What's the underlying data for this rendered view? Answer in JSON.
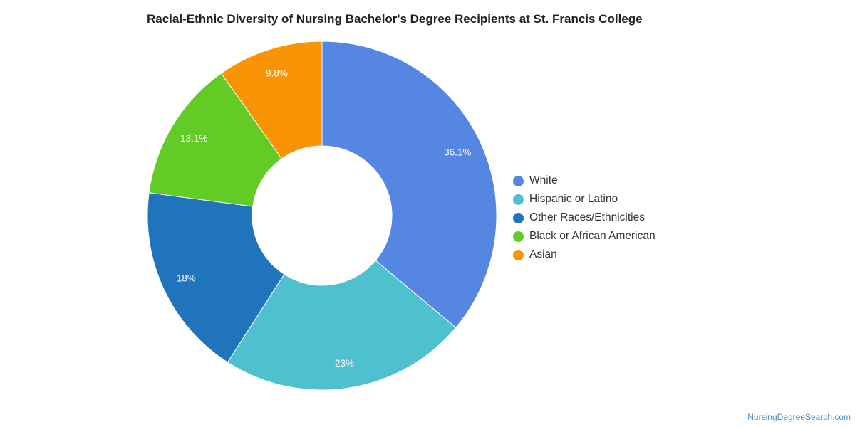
{
  "chart_data": {
    "type": "pie",
    "variant": "donut",
    "title": "Racial-Ethnic Diversity of Nursing Bachelor's Degree Recipients at St. Francis College",
    "categories": [
      "White",
      "Hispanic or Latino",
      "Other Races/Ethnicities",
      "Black or African American",
      "Asian"
    ],
    "values": [
      36.1,
      23,
      18,
      13.1,
      9.8
    ],
    "labels": [
      "36.1%",
      "23%",
      "18%",
      "13.1%",
      "9.8%"
    ],
    "colors": [
      "#5486e2",
      "#4fc1ce",
      "#1f74bb",
      "#62cb26",
      "#f89406"
    ],
    "legend_position": "right",
    "start_angle_deg": 0,
    "direction": "clockwise"
  },
  "watermark": "NursingDegreeSearch.com"
}
